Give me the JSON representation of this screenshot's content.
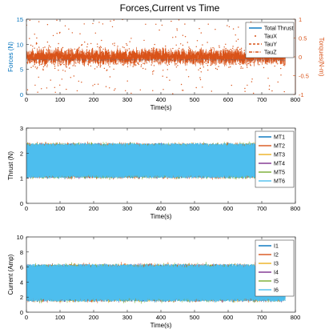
{
  "figure_title": "Forces,Current vs Time",
  "colors": {
    "blue": "#0072BD",
    "orange": "#D95319",
    "yellow": "#EDB120",
    "purple": "#7E2F8E",
    "green": "#77AC30",
    "cyan": "#4DBEEE"
  },
  "chart_data": [
    {
      "id": "forces",
      "type": "scatter",
      "title": "Forces,Current vs Time",
      "xlabel": "Time(s)",
      "ylabel": "Forces (N)",
      "y2label": "Torques(N-m)",
      "xlim": [
        0,
        800
      ],
      "ylim": [
        0,
        15
      ],
      "y2lim": [
        -1,
        1
      ],
      "xticks": [
        0,
        100,
        200,
        300,
        400,
        500,
        600,
        700,
        800
      ],
      "yticks": [
        0,
        5,
        10,
        15
      ],
      "y2ticks": [
        -1,
        -0.5,
        0,
        0.5,
        1
      ],
      "grid": false,
      "legend_position": "top-right",
      "x_end": 770,
      "series": [
        {
          "name": "Total Thrust",
          "axis": "left",
          "style": "line",
          "color": "#0072BD",
          "mean": 6.9,
          "spread": 0.3
        },
        {
          "name": "TauX",
          "axis": "right",
          "style": "dots",
          "color": "#D95319",
          "mean": 0.0,
          "spread": 0.35,
          "spike_max": 1.0
        },
        {
          "name": "TauY",
          "axis": "right",
          "style": "dash",
          "color": "#D95319",
          "mean": 0.0,
          "spread": 0.3
        },
        {
          "name": "TauZ",
          "axis": "right",
          "style": "dashdot",
          "color": "#D95319",
          "mean": 0.0,
          "spread": 0.3
        }
      ]
    },
    {
      "id": "thrust",
      "type": "line",
      "xlabel": "Time(s)",
      "ylabel": "Thrust (N)",
      "xlim": [
        0,
        800
      ],
      "ylim": [
        0,
        3
      ],
      "xticks": [
        0,
        100,
        200,
        300,
        400,
        500,
        600,
        700,
        800
      ],
      "yticks": [
        0,
        1,
        2,
        3
      ],
      "grid": false,
      "legend_position": "top-right",
      "x_end": 770,
      "band": {
        "low": 1.0,
        "high": 2.4
      },
      "series": [
        {
          "name": "MT1",
          "color": "#0072BD"
        },
        {
          "name": "MT2",
          "color": "#D95319"
        },
        {
          "name": "MT3",
          "color": "#EDB120"
        },
        {
          "name": "MT4",
          "color": "#7E2F8E"
        },
        {
          "name": "MT5",
          "color": "#77AC30"
        },
        {
          "name": "MT6",
          "color": "#4DBEEE"
        }
      ]
    },
    {
      "id": "current",
      "type": "line",
      "xlabel": "Time(s)",
      "ylabel": "Current (Amp)",
      "xlim": [
        0,
        800
      ],
      "ylim": [
        0,
        10
      ],
      "xticks": [
        0,
        100,
        200,
        300,
        400,
        500,
        600,
        700,
        800
      ],
      "yticks": [
        0,
        2,
        4,
        6,
        8,
        10
      ],
      "grid": false,
      "legend_position": "top-right",
      "x_end": 770,
      "band": {
        "low": 1.4,
        "high": 6.4
      },
      "series": [
        {
          "name": "I1",
          "color": "#0072BD"
        },
        {
          "name": "I2",
          "color": "#D95319"
        },
        {
          "name": "I3",
          "color": "#EDB120"
        },
        {
          "name": "I4",
          "color": "#7E2F8E"
        },
        {
          "name": "I5",
          "color": "#77AC30"
        },
        {
          "name": "I6",
          "color": "#4DBEEE"
        }
      ]
    }
  ]
}
